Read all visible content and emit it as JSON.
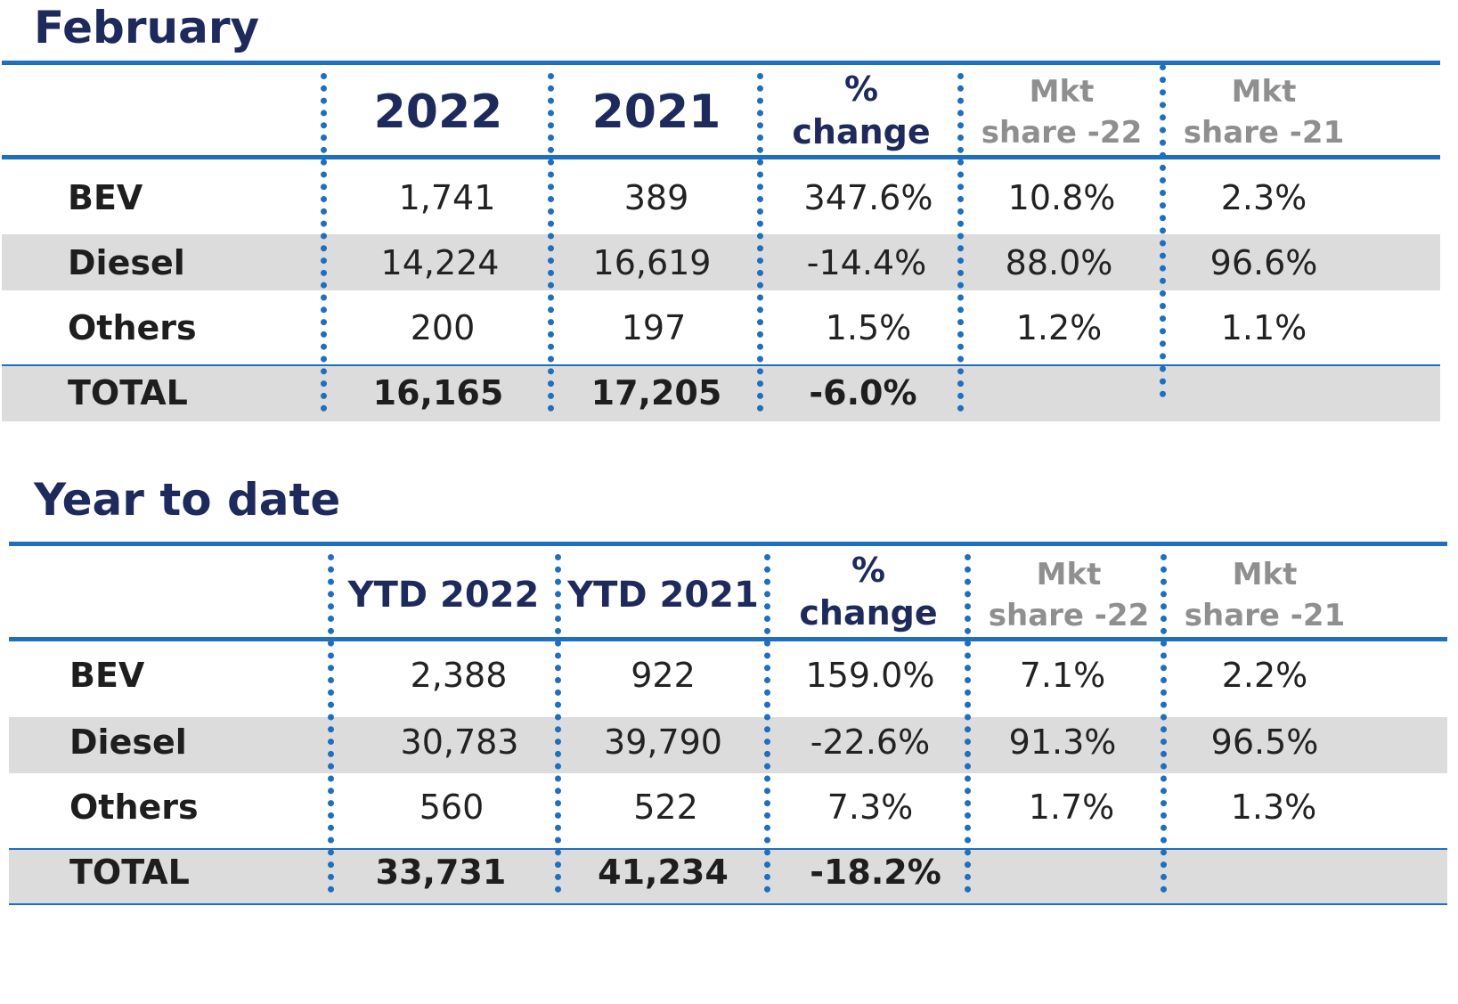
{
  "chart_data": [
    {
      "type": "table",
      "title": "February",
      "columns": [
        "",
        "2022",
        "2021",
        "% change",
        "Mkt share -22",
        "Mkt share -21"
      ],
      "header": {
        "col1": "2022",
        "col2": "2021",
        "change_l1": "%",
        "change_l2": "change",
        "mkt22_l1": "Mkt",
        "mkt22_l2": "share -22",
        "mkt21_l1": "Mkt",
        "mkt21_l2": "share -21"
      },
      "rows": [
        {
          "label": "BEV",
          "v2022": "1,741",
          "v2021": "389",
          "change": "347.6%",
          "share22": "10.8%",
          "share21": "2.3%"
        },
        {
          "label": "Diesel",
          "v2022": "14,224",
          "v2021": "16,619",
          "change": "-14.4%",
          "share22": "88.0%",
          "share21": "96.6%"
        },
        {
          "label": "Others",
          "v2022": "200",
          "v2021": "197",
          "change": "1.5%",
          "share22": "1.2%",
          "share21": "1.1%"
        }
      ],
      "total": {
        "label": "TOTAL",
        "v2022": "16,165",
        "v2021": "17,205",
        "change": "-6.0%"
      }
    },
    {
      "type": "table",
      "title": "Year to date",
      "columns": [
        "",
        "YTD 2022",
        "YTD 2021",
        "% change",
        "Mkt share -22",
        "Mkt share -21"
      ],
      "header": {
        "col1": "YTD 2022",
        "col2": "YTD 2021",
        "change_l1": "%",
        "change_l2": "change",
        "mkt22_l1": "Mkt",
        "mkt22_l2": "share -22",
        "mkt21_l1": "Mkt",
        "mkt21_l2": "share -21"
      },
      "rows": [
        {
          "label": "BEV",
          "v2022": "2,388",
          "v2021": "922",
          "change": "159.0%",
          "share22": "7.1%",
          "share21": "2.2%"
        },
        {
          "label": "Diesel",
          "v2022": "30,783",
          "v2021": "39,790",
          "change": "-22.6%",
          "share22": "91.3%",
          "share21": "96.5%"
        },
        {
          "label": "Others",
          "v2022": "560",
          "v2021": "522",
          "change": "7.3%",
          "share22": "1.7%",
          "share21": "1.3%"
        }
      ],
      "total": {
        "label": "TOTAL",
        "v2022": "33,731",
        "v2021": "41,234",
        "change": "-18.2%"
      }
    }
  ],
  "colors": {
    "title": "#1f2a5c",
    "rule": "#1f6fbf",
    "band": "#dcdcdc",
    "muted_header": "#8f8f8f"
  }
}
